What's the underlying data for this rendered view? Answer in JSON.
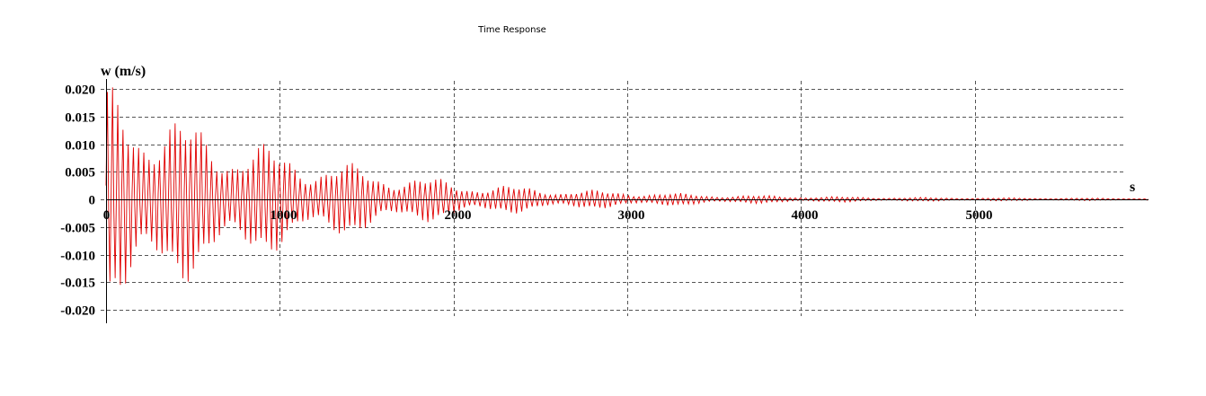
{
  "window": {
    "title": "Time Response"
  },
  "chart_data": {
    "type": "line",
    "title": "Time Response",
    "ylabel": "w (m/s)",
    "xlabel": "s",
    "xlim": [
      0,
      6000
    ],
    "ylim": [
      -0.022,
      0.022
    ],
    "grid": true,
    "grid_style": "dashed",
    "x_ticks": [
      {
        "value": 0,
        "label": "0"
      },
      {
        "value": 1000,
        "label": "1000"
      },
      {
        "value": 2000,
        "label": "2000"
      },
      {
        "value": 3000,
        "label": "3000"
      },
      {
        "value": 4000,
        "label": "4000"
      },
      {
        "value": 5000,
        "label": "5000"
      }
    ],
    "y_ticks": [
      {
        "value": 0.02,
        "label": "0.020"
      },
      {
        "value": 0.015,
        "label": "0.015"
      },
      {
        "value": 0.01,
        "label": "0.010"
      },
      {
        "value": 0.005,
        "label": "0.005"
      },
      {
        "value": 0,
        "label": "0"
      },
      {
        "value": -0.005,
        "label": "-0.005"
      },
      {
        "value": -0.01,
        "label": "-0.010"
      },
      {
        "value": -0.015,
        "label": "-0.015"
      },
      {
        "value": -0.02,
        "label": "-0.020"
      }
    ],
    "series": [
      {
        "color": "#e00000",
        "envelope": [
          {
            "x": 0,
            "amplitude": 0.021
          },
          {
            "x": 100,
            "amplitude": 0.021
          },
          {
            "x": 500,
            "amplitude": 0.0145
          },
          {
            "x": 1000,
            "amplitude": 0.0095
          },
          {
            "x": 1500,
            "amplitude": 0.006
          },
          {
            "x": 2000,
            "amplitude": 0.0035
          },
          {
            "x": 2500,
            "amplitude": 0.0022
          },
          {
            "x": 3000,
            "amplitude": 0.0015
          },
          {
            "x": 3500,
            "amplitude": 0.0009
          },
          {
            "x": 4000,
            "amplitude": 0.0006
          },
          {
            "x": 4500,
            "amplitude": 0.0004
          },
          {
            "x": 5000,
            "amplitude": 0.0003
          },
          {
            "x": 6000,
            "amplitude": 0.0002
          }
        ],
        "oscillation_period_s": 30
      }
    ]
  }
}
